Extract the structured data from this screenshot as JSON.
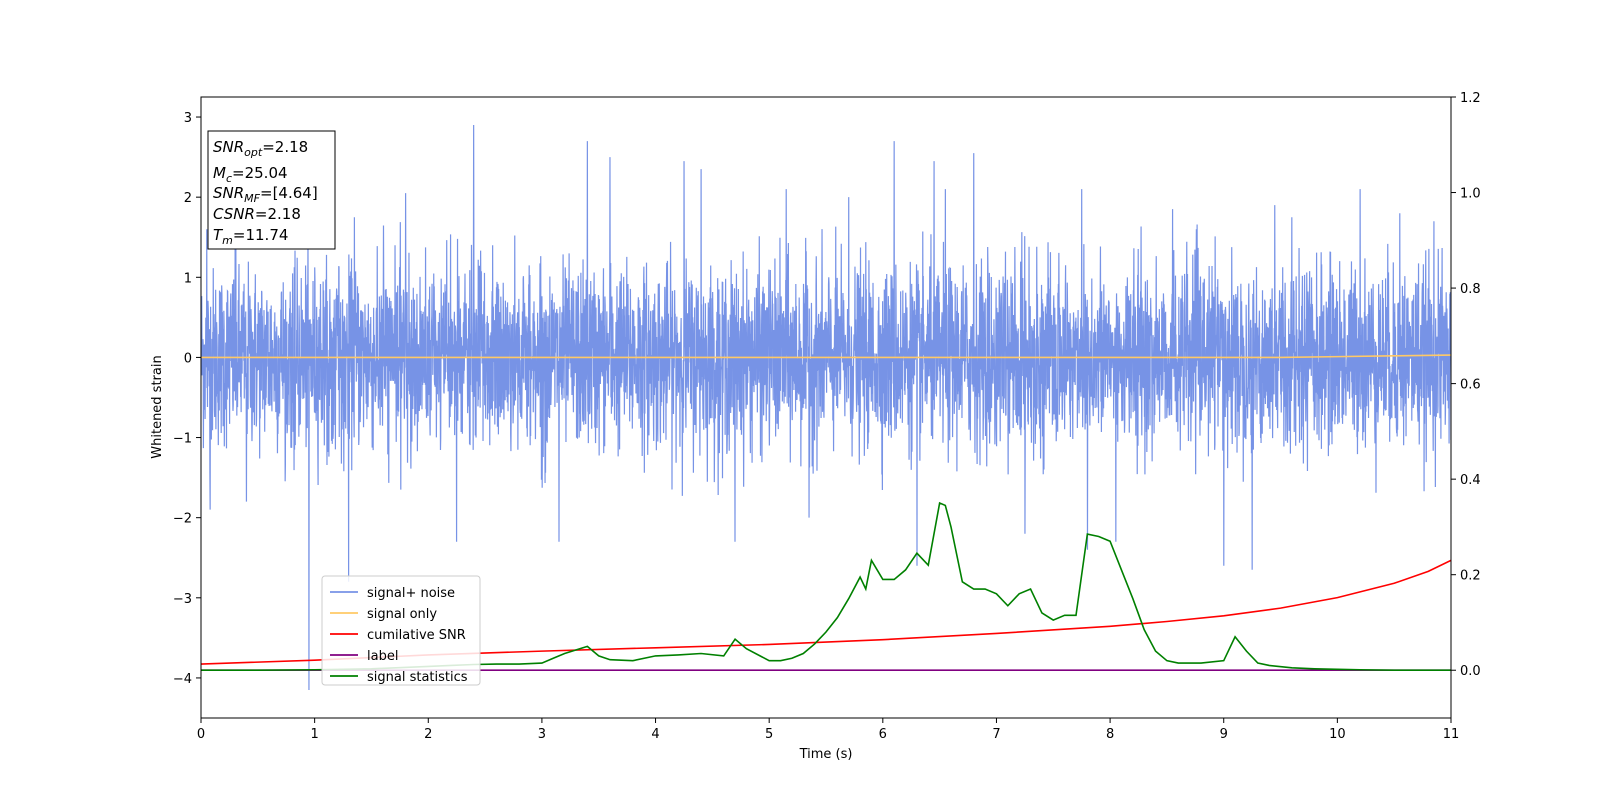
{
  "chart_data": {
    "type": "line",
    "xlabel": "Time (s)",
    "ylabel": "Whitened strain",
    "xlim": [
      0,
      11
    ],
    "ylim": [
      -4.5,
      3.25
    ],
    "y2lim": [
      -0.1,
      1.2
    ],
    "x_ticks": [
      0,
      1,
      2,
      3,
      4,
      5,
      6,
      7,
      8,
      9,
      10,
      11
    ],
    "y_ticks": [
      3,
      2,
      1,
      0,
      -1,
      -2,
      -3,
      -4
    ],
    "y_tick_labels": [
      "3",
      "2",
      "1",
      "0",
      "−1",
      "−2",
      "−3",
      "−4"
    ],
    "y2_ticks": [
      1.2,
      1.0,
      0.8,
      0.6,
      0.4,
      0.2,
      0.0
    ],
    "y2_tick_labels": [
      "1.2",
      "1.0",
      "0.8",
      "0.6",
      "0.4",
      "0.2",
      "0.0"
    ],
    "grid": false,
    "legend_position": "lower-left",
    "annotation": {
      "snr_opt": {
        "base": "SNR",
        "sub": "opt",
        "value": "=2.18"
      },
      "mc": {
        "base": "M",
        "sub": "c",
        "value": "=25.04"
      },
      "snr_mf": {
        "base": "SNR",
        "sub": "MF",
        "value": "=[4.64]"
      },
      "csnr": {
        "base": "CSNR",
        "value": "=2.18"
      },
      "tm": {
        "base": "T",
        "sub": "m",
        "value": "=11.74"
      }
    },
    "series": [
      {
        "name": "signal+ noise",
        "color": "#5578e0",
        "axis": "left",
        "kind": "noise",
        "envelope": {
          "typical_max": 1.3,
          "typical_min": -1.3
        },
        "spikes": [
          [
            0.05,
            1.6
          ],
          [
            0.08,
            -1.9
          ],
          [
            0.3,
            1.5
          ],
          [
            0.4,
            -1.8
          ],
          [
            0.95,
            -4.15
          ],
          [
            1.3,
            -2.8
          ],
          [
            1.35,
            1.75
          ],
          [
            1.8,
            2.05
          ],
          [
            2.4,
            2.9
          ],
          [
            2.25,
            -2.3
          ],
          [
            3.15,
            -2.3
          ],
          [
            3.4,
            2.7
          ],
          [
            3.6,
            2.5
          ],
          [
            4.25,
            2.45
          ],
          [
            4.4,
            2.35
          ],
          [
            4.7,
            -2.3
          ],
          [
            5.15,
            2.1
          ],
          [
            5.35,
            -2.0
          ],
          [
            5.7,
            2.0
          ],
          [
            6.1,
            2.7
          ],
          [
            6.3,
            -2.6
          ],
          [
            6.45,
            2.45
          ],
          [
            6.55,
            2.1
          ],
          [
            6.8,
            2.55
          ],
          [
            7.25,
            -2.2
          ],
          [
            7.75,
            2.1
          ],
          [
            7.8,
            -2.4
          ],
          [
            8.05,
            -2.3
          ],
          [
            8.55,
            1.85
          ],
          [
            9.0,
            -2.6
          ],
          [
            9.25,
            -2.65
          ],
          [
            9.45,
            1.9
          ],
          [
            9.6,
            1.75
          ],
          [
            10.2,
            2.1
          ],
          [
            10.55,
            1.8
          ],
          [
            10.85,
            1.7
          ]
        ]
      },
      {
        "name": "signal only",
        "color": "#ffc966",
        "axis": "left",
        "x": [
          0,
          9.5,
          10,
          10.5,
          11
        ],
        "y": [
          0,
          0,
          0.01,
          0.02,
          0.03
        ]
      },
      {
        "name": "cumilative SNR",
        "color": "#ff0000",
        "axis": "right",
        "x": [
          0,
          1,
          2,
          3,
          4,
          5,
          6,
          7,
          8,
          8.5,
          9,
          9.5,
          10,
          10.5,
          10.8,
          11
        ],
        "y": [
          0.013,
          0.021,
          0.032,
          0.04,
          0.047,
          0.054,
          0.064,
          0.077,
          0.092,
          0.102,
          0.114,
          0.13,
          0.152,
          0.182,
          0.207,
          0.23
        ]
      },
      {
        "name": "label",
        "color": "#800080",
        "axis": "right",
        "x": [
          0,
          11
        ],
        "y": [
          0,
          0
        ]
      },
      {
        "name": "signal statistics",
        "color": "#008000",
        "axis": "right",
        "x": [
          0,
          0.5,
          1,
          1.5,
          2,
          2.2,
          2.4,
          2.6,
          2.8,
          3.0,
          3.1,
          3.2,
          3.4,
          3.5,
          3.6,
          3.8,
          4.0,
          4.2,
          4.4,
          4.6,
          4.7,
          4.8,
          5.0,
          5.1,
          5.2,
          5.3,
          5.4,
          5.5,
          5.6,
          5.7,
          5.8,
          5.85,
          5.9,
          6.0,
          6.1,
          6.2,
          6.3,
          6.4,
          6.5,
          6.55,
          6.6,
          6.7,
          6.8,
          6.9,
          7.0,
          7.1,
          7.2,
          7.3,
          7.4,
          7.5,
          7.6,
          7.7,
          7.8,
          7.9,
          8.0,
          8.1,
          8.2,
          8.3,
          8.4,
          8.5,
          8.6,
          8.8,
          9.0,
          9.1,
          9.2,
          9.3,
          9.4,
          9.6,
          9.8,
          10.0,
          10.2,
          10.5,
          11.0
        ],
        "y": [
          0.0,
          0.0,
          0.001,
          0.003,
          0.008,
          0.01,
          0.012,
          0.013,
          0.013,
          0.015,
          0.025,
          0.035,
          0.05,
          0.03,
          0.022,
          0.02,
          0.03,
          0.032,
          0.035,
          0.03,
          0.065,
          0.045,
          0.02,
          0.02,
          0.025,
          0.035,
          0.055,
          0.08,
          0.11,
          0.15,
          0.195,
          0.17,
          0.23,
          0.19,
          0.19,
          0.21,
          0.245,
          0.22,
          0.35,
          0.345,
          0.3,
          0.185,
          0.17,
          0.17,
          0.16,
          0.135,
          0.16,
          0.17,
          0.12,
          0.105,
          0.115,
          0.115,
          0.285,
          0.28,
          0.27,
          0.21,
          0.15,
          0.085,
          0.04,
          0.02,
          0.015,
          0.015,
          0.02,
          0.07,
          0.04,
          0.015,
          0.01,
          0.005,
          0.003,
          0.002,
          0.001,
          0.0,
          0.0
        ]
      }
    ]
  }
}
